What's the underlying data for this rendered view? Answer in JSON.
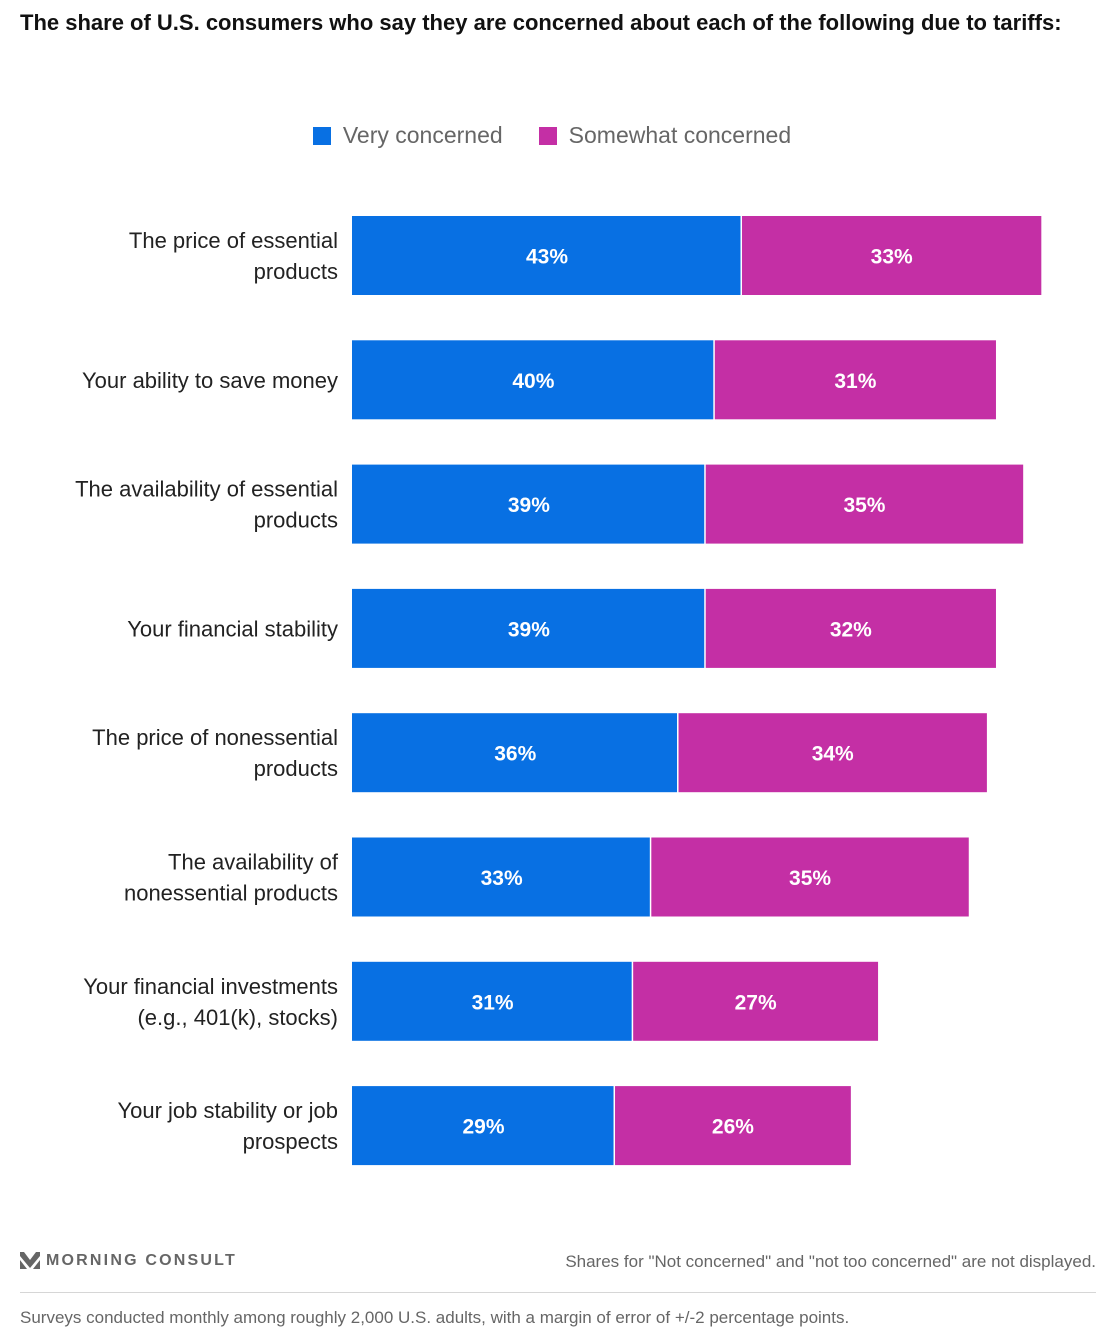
{
  "chart_data": {
    "type": "bar",
    "orientation": "horizontal",
    "stacked": true,
    "title": "The share of U.S. consumers who say they are concerned about each of the following due to tariffs:",
    "categories": [
      "The price of essential products",
      "Your ability to save money",
      "The availability of essential products",
      "Your financial stability",
      "The price of nonessential products",
      "The availability of nonessential products",
      "Your financial investments (e.g., 401(k), stocks)",
      "Your job stability or job prospects"
    ],
    "category_lines": [
      [
        "The price of essential",
        "products"
      ],
      [
        "Your ability to save money"
      ],
      [
        "The availability of essential",
        "products"
      ],
      [
        "Your financial stability"
      ],
      [
        "The price of nonessential",
        "products"
      ],
      [
        "The availability of",
        "nonessential products"
      ],
      [
        "Your financial investments",
        "(e.g., 401(k), stocks)"
      ],
      [
        "Your job stability or job",
        "prospects"
      ]
    ],
    "series": [
      {
        "name": "Very concerned",
        "color": "#0870e3",
        "values": [
          43,
          40,
          39,
          39,
          36,
          33,
          31,
          29
        ]
      },
      {
        "name": "Somewhat concerned",
        "color": "#c42fa5",
        "values": [
          33,
          31,
          35,
          32,
          34,
          35,
          27,
          26
        ]
      }
    ],
    "value_suffix": "%",
    "xlabel": "",
    "ylabel": "",
    "xlim": [
      0,
      100
    ],
    "grid": false,
    "legend_position": "top-center"
  },
  "legend": {
    "items": [
      {
        "label": "Very concerned",
        "color": "#0870e3"
      },
      {
        "label": "Somewhat concerned",
        "color": "#c42fa5"
      }
    ]
  },
  "footer": {
    "brand": "MORNING CONSULT",
    "note": "Shares for \"Not concerned\" and \"not too concerned\" are not displayed.",
    "source": "Surveys conducted monthly among roughly 2,000 U.S. adults, with a margin of error of +/-2 percentage points."
  }
}
